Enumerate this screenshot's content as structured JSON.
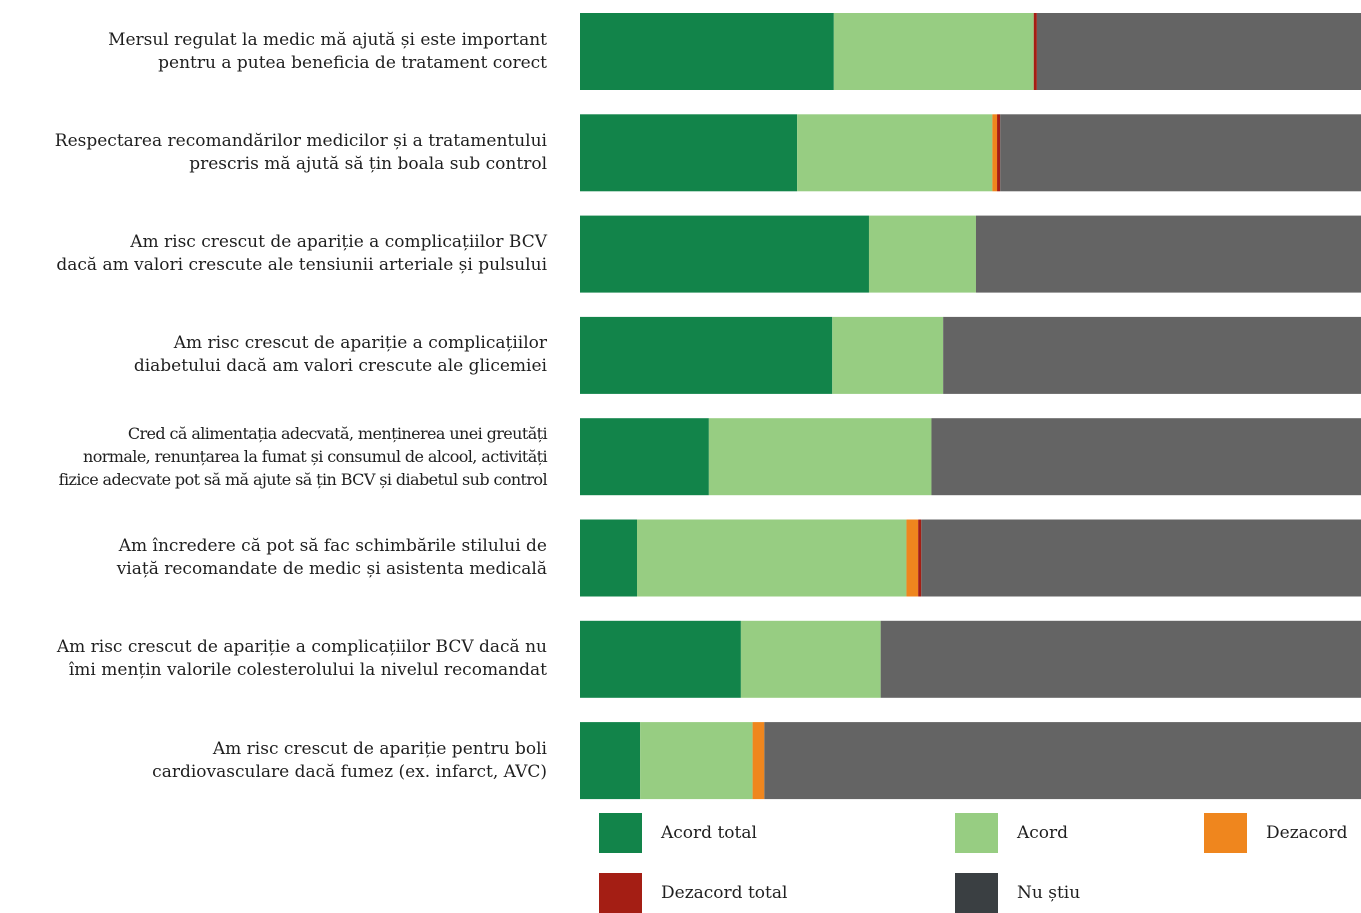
{
  "chart_data": {
    "type": "bar",
    "orientation": "horizontal",
    "stacked": true,
    "title": "",
    "xlabel": "",
    "ylabel": "",
    "xlim": [
      0,
      100
    ],
    "grid": false,
    "legend_position": "bottom",
    "categories": [
      "Mersul regulat la medic mă ajută și este important\npentru a putea beneficia de tratament corect",
      "Respectarea recomandărilor medicilor și a tratamentului\nprescris mă ajută să țin boala sub control",
      "Am risc crescut de apariție a complicațiilor BCV\ndacă am valori crescute ale tensiunii arteriale și pulsului",
      "Am risc crescut de apariție a complicațiilor\ndiabetului dacă am valori crescute ale glicemiei",
      "Cred că alimentația adecvată, menținerea unei greutăți\nnormale, renunțarea la fumat și consumul de alcool, activități\nfizice adecvate pot să mă ajute să țin BCV și diabetul sub control",
      "Am încredere că pot să fac schimbările stilului de\nviață recomandate de medic și asistenta medicală",
      "Am risc crescut de apariție a complicațiilor BCV dacă nu\nîmi mențin valorile colesterolului la nivelul recomandat",
      "Am risc crescut de apariție pentru boli\ncardiovasculare dacă fumez (ex. infarct, AVC)"
    ],
    "series": [
      {
        "name": "Acord total",
        "color": "#12844a",
        "values": [
          32.5,
          27.8,
          37.0,
          32.3,
          16.5,
          7.3,
          20.6,
          7.7
        ]
      },
      {
        "name": "Acord",
        "color": "#97cd82",
        "values": [
          25.6,
          25.0,
          13.7,
          14.2,
          28.5,
          34.5,
          17.9,
          14.4
        ]
      },
      {
        "name": "Dezacord",
        "color": "#ef861e",
        "values": [
          0.0,
          0.6,
          0.0,
          0.0,
          0.0,
          1.5,
          0.0,
          1.5
        ]
      },
      {
        "name": "Dezacord total",
        "color": "#a41e14",
        "values": [
          0.4,
          0.4,
          0.0,
          0.0,
          0.0,
          0.4,
          0.0,
          0.0
        ]
      },
      {
        "name": "Nu știu",
        "color": "#646464",
        "values": [
          41.5,
          46.2,
          49.3,
          53.5,
          55.0,
          56.3,
          61.5,
          76.4
        ]
      }
    ],
    "legend_swatch_colors": {
      "Nu știu": "#3a3f42"
    }
  }
}
